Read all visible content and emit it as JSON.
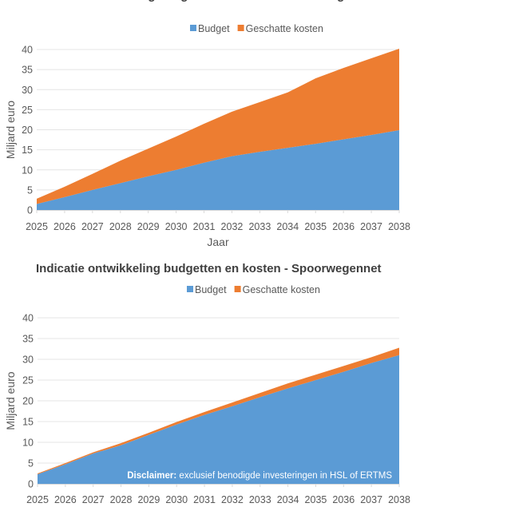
{
  "colors": {
    "budget": "#5b9bd5",
    "kosten": "#ed7d31",
    "grid": "#e4e4e4",
    "text": "#595959"
  },
  "chart_data": [
    {
      "type": "area",
      "stacked": true,
      "title": "Indicatie ontwikkeling budgetten en kosten - Hoofdwegennet",
      "xlabel": "Jaar",
      "ylabel": "Miljard euro",
      "ylim": [
        0,
        40
      ],
      "yticks": [
        "0",
        "5",
        "10",
        "15",
        "20",
        "25",
        "30",
        "35",
        "40"
      ],
      "grid": true,
      "legend": "top",
      "categories": [
        "2025",
        "2026",
        "2027",
        "2028",
        "2029",
        "2030",
        "2031",
        "2032",
        "2033",
        "2034",
        "2035",
        "2036",
        "2037",
        "2038"
      ],
      "series": [
        {
          "name": "Budget",
          "values": [
            1.5,
            3.2,
            5.0,
            6.7,
            8.4,
            10.0,
            11.8,
            13.4,
            14.5,
            15.5,
            16.5,
            17.6,
            18.7,
            19.9
          ]
        },
        {
          "name": "Geschatte kosten",
          "values": [
            1.3,
            2.6,
            4.0,
            5.6,
            6.9,
            8.3,
            9.7,
            11.1,
            12.4,
            13.8,
            16.3,
            17.8,
            19.1,
            20.3
          ]
        }
      ]
    },
    {
      "type": "area",
      "stacked": true,
      "title": "Indicatie ontwikkeling budgetten en kosten - Spoorwegennet",
      "xlabel": "",
      "ylabel": "Miljard euro",
      "ylim": [
        0,
        40
      ],
      "yticks": [
        "0",
        "5",
        "10",
        "15",
        "20",
        "25",
        "30",
        "35",
        "40"
      ],
      "grid": true,
      "legend": "top",
      "categories": [
        "2025",
        "2026",
        "2027",
        "2028",
        "2029",
        "2030",
        "2031",
        "2032",
        "2033",
        "2034",
        "2035",
        "2036",
        "2037",
        "2038"
      ],
      "series": [
        {
          "name": "Budget",
          "values": [
            2.3,
            4.7,
            7.3,
            9.3,
            11.8,
            14.3,
            16.6,
            18.7,
            20.9,
            23.0,
            25.0,
            27.0,
            29.1,
            31.0
          ]
        },
        {
          "name": "Geschatte kosten",
          "values": [
            0.2,
            0.3,
            0.3,
            0.5,
            0.5,
            0.6,
            0.7,
            0.9,
            1.0,
            1.2,
            1.3,
            1.4,
            1.4,
            1.8
          ]
        }
      ],
      "annotation": {
        "bold": "Disclaimer:",
        "text": " exclusief benodigde investeringen in HSL of ERTMS"
      }
    }
  ]
}
